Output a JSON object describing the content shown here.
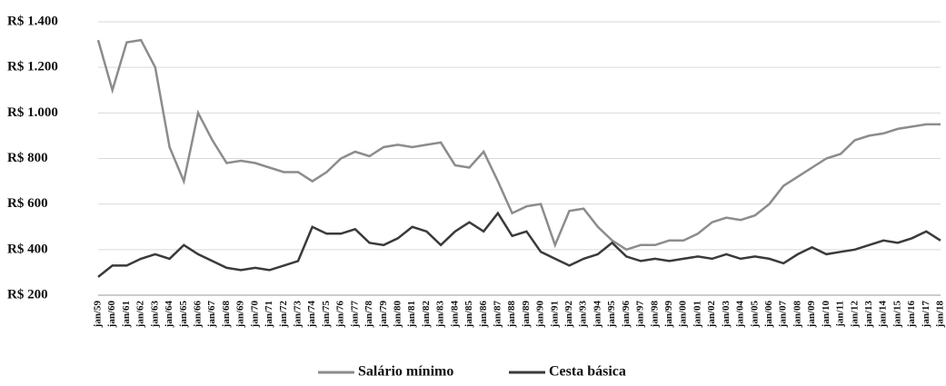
{
  "chart_data": {
    "type": "line",
    "categories": [
      "jan/59",
      "jan/60",
      "jan/61",
      "jan/62",
      "jan/63",
      "jan/64",
      "jan/65",
      "jan/66",
      "jan/67",
      "jan/68",
      "jan/69",
      "jan/70",
      "jan/71",
      "jan/72",
      "jan/73",
      "jan/74",
      "jan/75",
      "jan/76",
      "jan/77",
      "jan/78",
      "jan/79",
      "jan/80",
      "jan/81",
      "jan/82",
      "jan/83",
      "jan/84",
      "jan/85",
      "jan/86",
      "jan/87",
      "jan/88",
      "jan/89",
      "jan/90",
      "jan/91",
      "jan/92",
      "jan/93",
      "jan/94",
      "jan/95",
      "jan/96",
      "jan/97",
      "jan/98",
      "jan/99",
      "jan/00",
      "jan/01",
      "jan/02",
      "jan/03",
      "jan/04",
      "jan/05",
      "jan/06",
      "jan/07",
      "jan/08",
      "jan/09",
      "jan/10",
      "jan/11",
      "jan/12",
      "jan/13",
      "jan/14",
      "jan/15",
      "jan/16",
      "jan/17",
      "jan/18"
    ],
    "series": [
      {
        "name": "Salário mínimo",
        "color": "#8c8c8c",
        "values": [
          1320,
          1100,
          1310,
          1320,
          1200,
          850,
          700,
          1000,
          880,
          780,
          790,
          780,
          760,
          740,
          740,
          700,
          740,
          800,
          830,
          810,
          850,
          860,
          850,
          860,
          870,
          770,
          760,
          830,
          700,
          560,
          590,
          600,
          420,
          570,
          580,
          500,
          440,
          400,
          420,
          420,
          440,
          440,
          470,
          520,
          540,
          530,
          550,
          600,
          680,
          720,
          760,
          800,
          820,
          880,
          900,
          910,
          930,
          940,
          950,
          950
        ]
      },
      {
        "name": "Cesta básica",
        "color": "#3a3a3a",
        "values": [
          280,
          330,
          330,
          360,
          380,
          360,
          420,
          380,
          350,
          320,
          310,
          320,
          310,
          330,
          350,
          500,
          470,
          470,
          490,
          430,
          420,
          450,
          500,
          480,
          420,
          480,
          520,
          480,
          560,
          460,
          480,
          390,
          360,
          330,
          360,
          380,
          430,
          370,
          350,
          360,
          350,
          360,
          370,
          360,
          380,
          360,
          370,
          360,
          340,
          380,
          410,
          380,
          390,
          400,
          420,
          440,
          430,
          450,
          480,
          440
        ]
      }
    ],
    "ylim": [
      200,
      1400
    ],
    "yticks": [
      {
        "value": 200,
        "label": "R$ 200"
      },
      {
        "value": 400,
        "label": "R$ 400"
      },
      {
        "value": 600,
        "label": "R$ 600"
      },
      {
        "value": 800,
        "label": "R$ 800"
      },
      {
        "value": 1000,
        "label": "R$ 1.000"
      },
      {
        "value": 1200,
        "label": "R$ 1.200"
      },
      {
        "value": 1400,
        "label": "R$ 1.400"
      }
    ],
    "grid": true,
    "legend": "bottom"
  }
}
